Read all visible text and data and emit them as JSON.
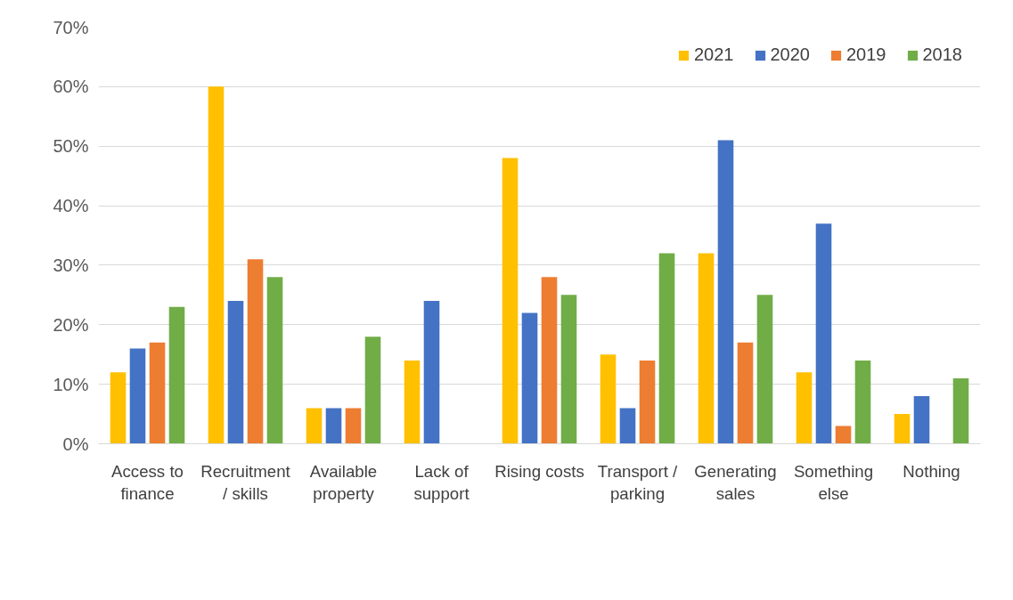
{
  "chart_data": {
    "type": "bar",
    "categories": [
      "Access to finance",
      "Recruitment / skills",
      "Available property",
      "Lack of support",
      "Rising costs",
      "Transport / parking",
      "Generating sales",
      "Something else",
      "Nothing"
    ],
    "series": [
      {
        "name": "2021",
        "color": "#ffc000",
        "values": [
          12,
          60,
          6,
          14,
          48,
          15,
          32,
          12,
          5
        ]
      },
      {
        "name": "2020",
        "color": "#4472c4",
        "values": [
          16,
          24,
          6,
          24,
          22,
          6,
          51,
          37,
          8
        ]
      },
      {
        "name": "2019",
        "color": "#ed7d31",
        "values": [
          17,
          31,
          6,
          null,
          28,
          14,
          17,
          3,
          null
        ]
      },
      {
        "name": "2018",
        "color": "#70ad47",
        "values": [
          23,
          28,
          18,
          null,
          25,
          32,
          25,
          14,
          11
        ]
      }
    ],
    "ylim": [
      0,
      70
    ],
    "yticks": [
      {
        "value": 0,
        "label": "0%"
      },
      {
        "value": 10,
        "label": "10%"
      },
      {
        "value": 20,
        "label": "20%"
      },
      {
        "value": 30,
        "label": "30%"
      },
      {
        "value": 40,
        "label": "40%"
      },
      {
        "value": 50,
        "label": "50%"
      },
      {
        "value": 60,
        "label": "60%"
      },
      {
        "value": 70,
        "label": "70%"
      }
    ],
    "grid": "y",
    "legend": "top right"
  }
}
